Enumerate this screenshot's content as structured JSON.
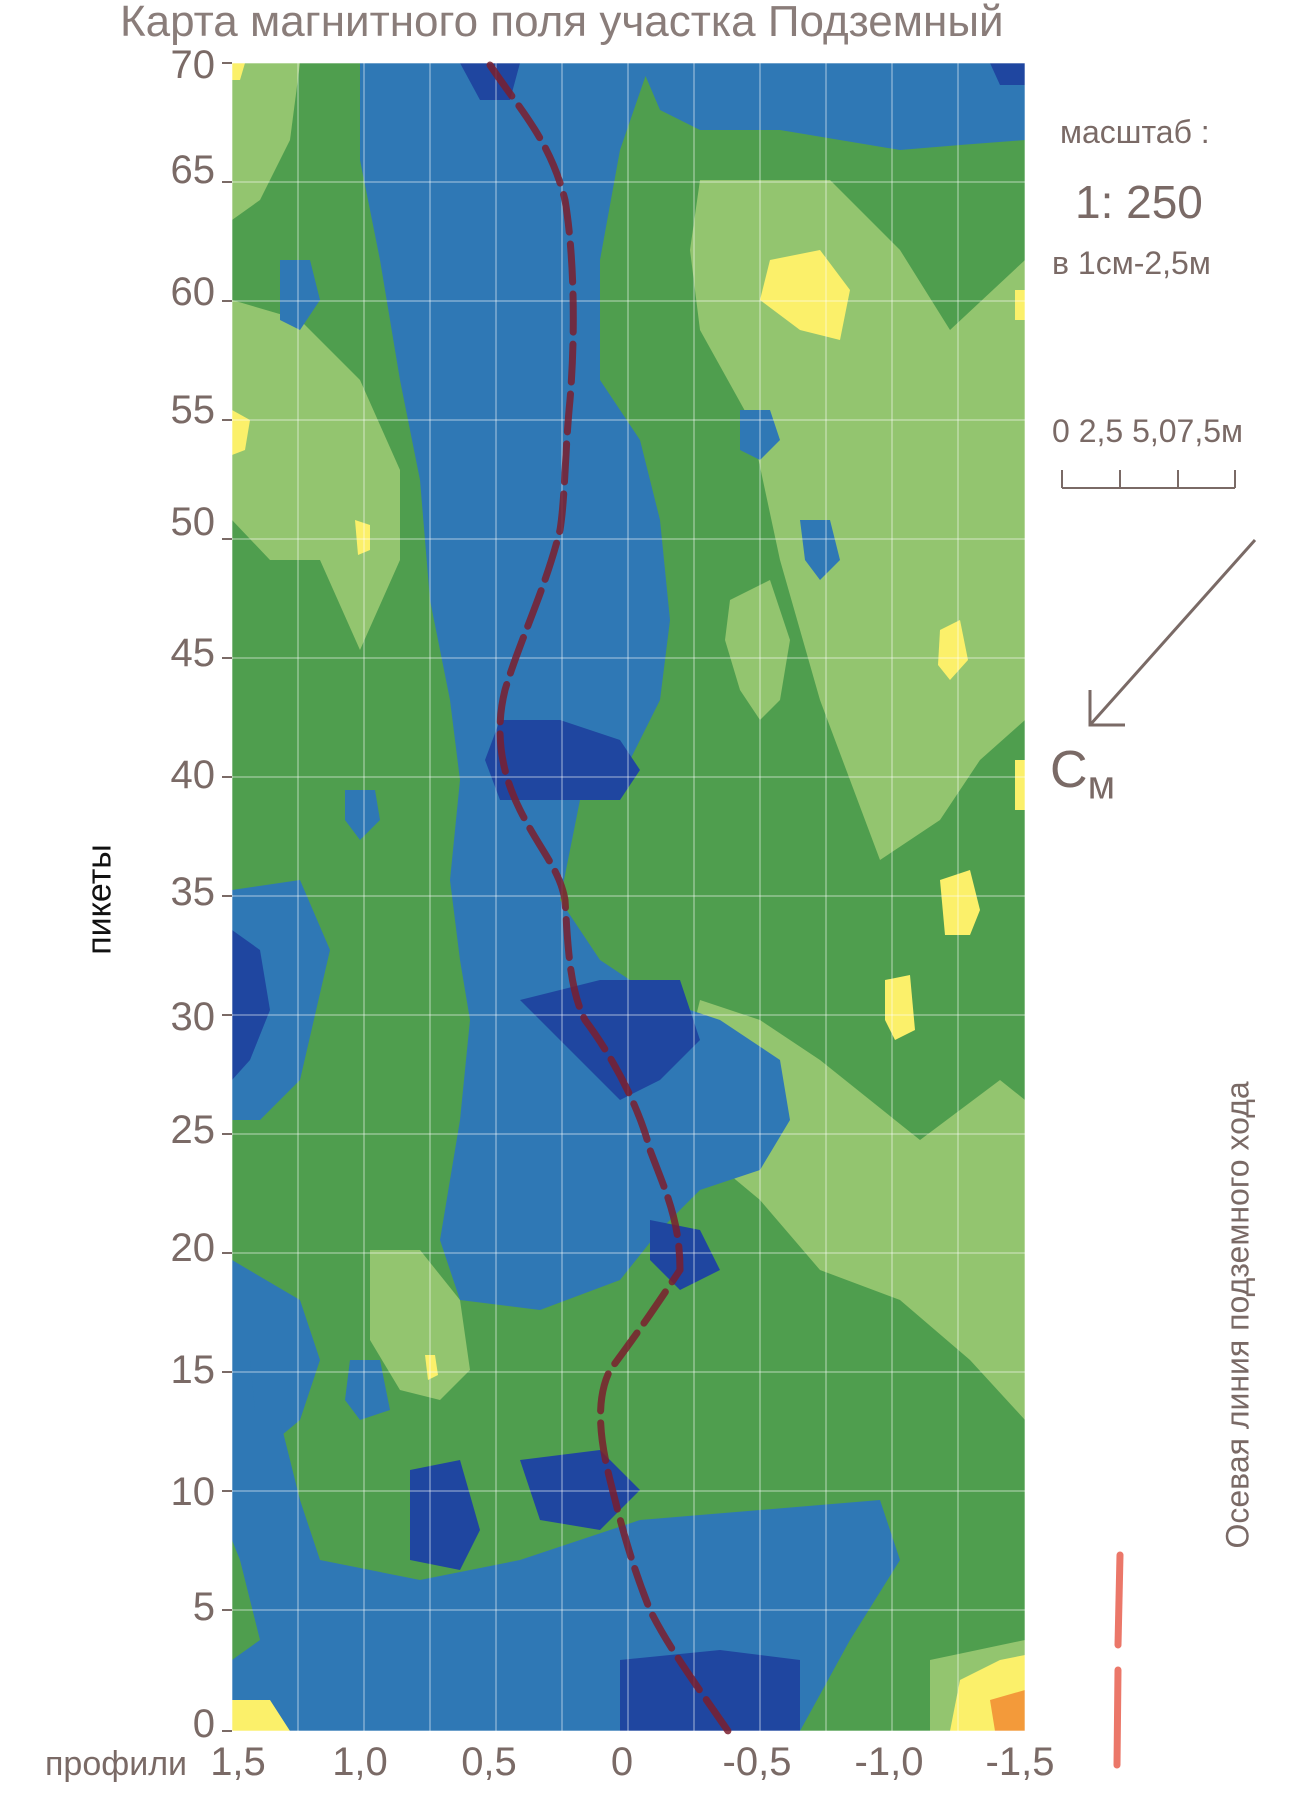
{
  "title": "Карта магнитного поля участка Подземный",
  "axes": {
    "y_label": "пикеты",
    "x_label": "профили",
    "y_ticks": [
      "0",
      "5",
      "10",
      "15",
      "20",
      "25",
      "30",
      "35",
      "40",
      "45",
      "50",
      "55",
      "60",
      "65",
      "70"
    ],
    "x_ticks": [
      "1,5",
      "1,0",
      "0,5",
      "0",
      "-0,5",
      "-1,0",
      "-1,5"
    ]
  },
  "scale": {
    "label": "масштаб :",
    "ratio": "1: 250",
    "note": "в 1см-2,5м",
    "bar_labels": "0 2,5 5,07,5м"
  },
  "north_arrow": {
    "letter": "С",
    "subscript": "м"
  },
  "legend": {
    "axis_line_label": "Осевая линия подземного хода"
  },
  "colors": {
    "dark_blue": "#1f46a0",
    "blue": "#2f78b5",
    "green": "#4f9e4e",
    "light_green": "#93c56f",
    "yellow": "#fbf06a",
    "orange": "#f39a3a",
    "axis_line": "#7a1f2e",
    "legend_line": "#e8604f"
  }
}
